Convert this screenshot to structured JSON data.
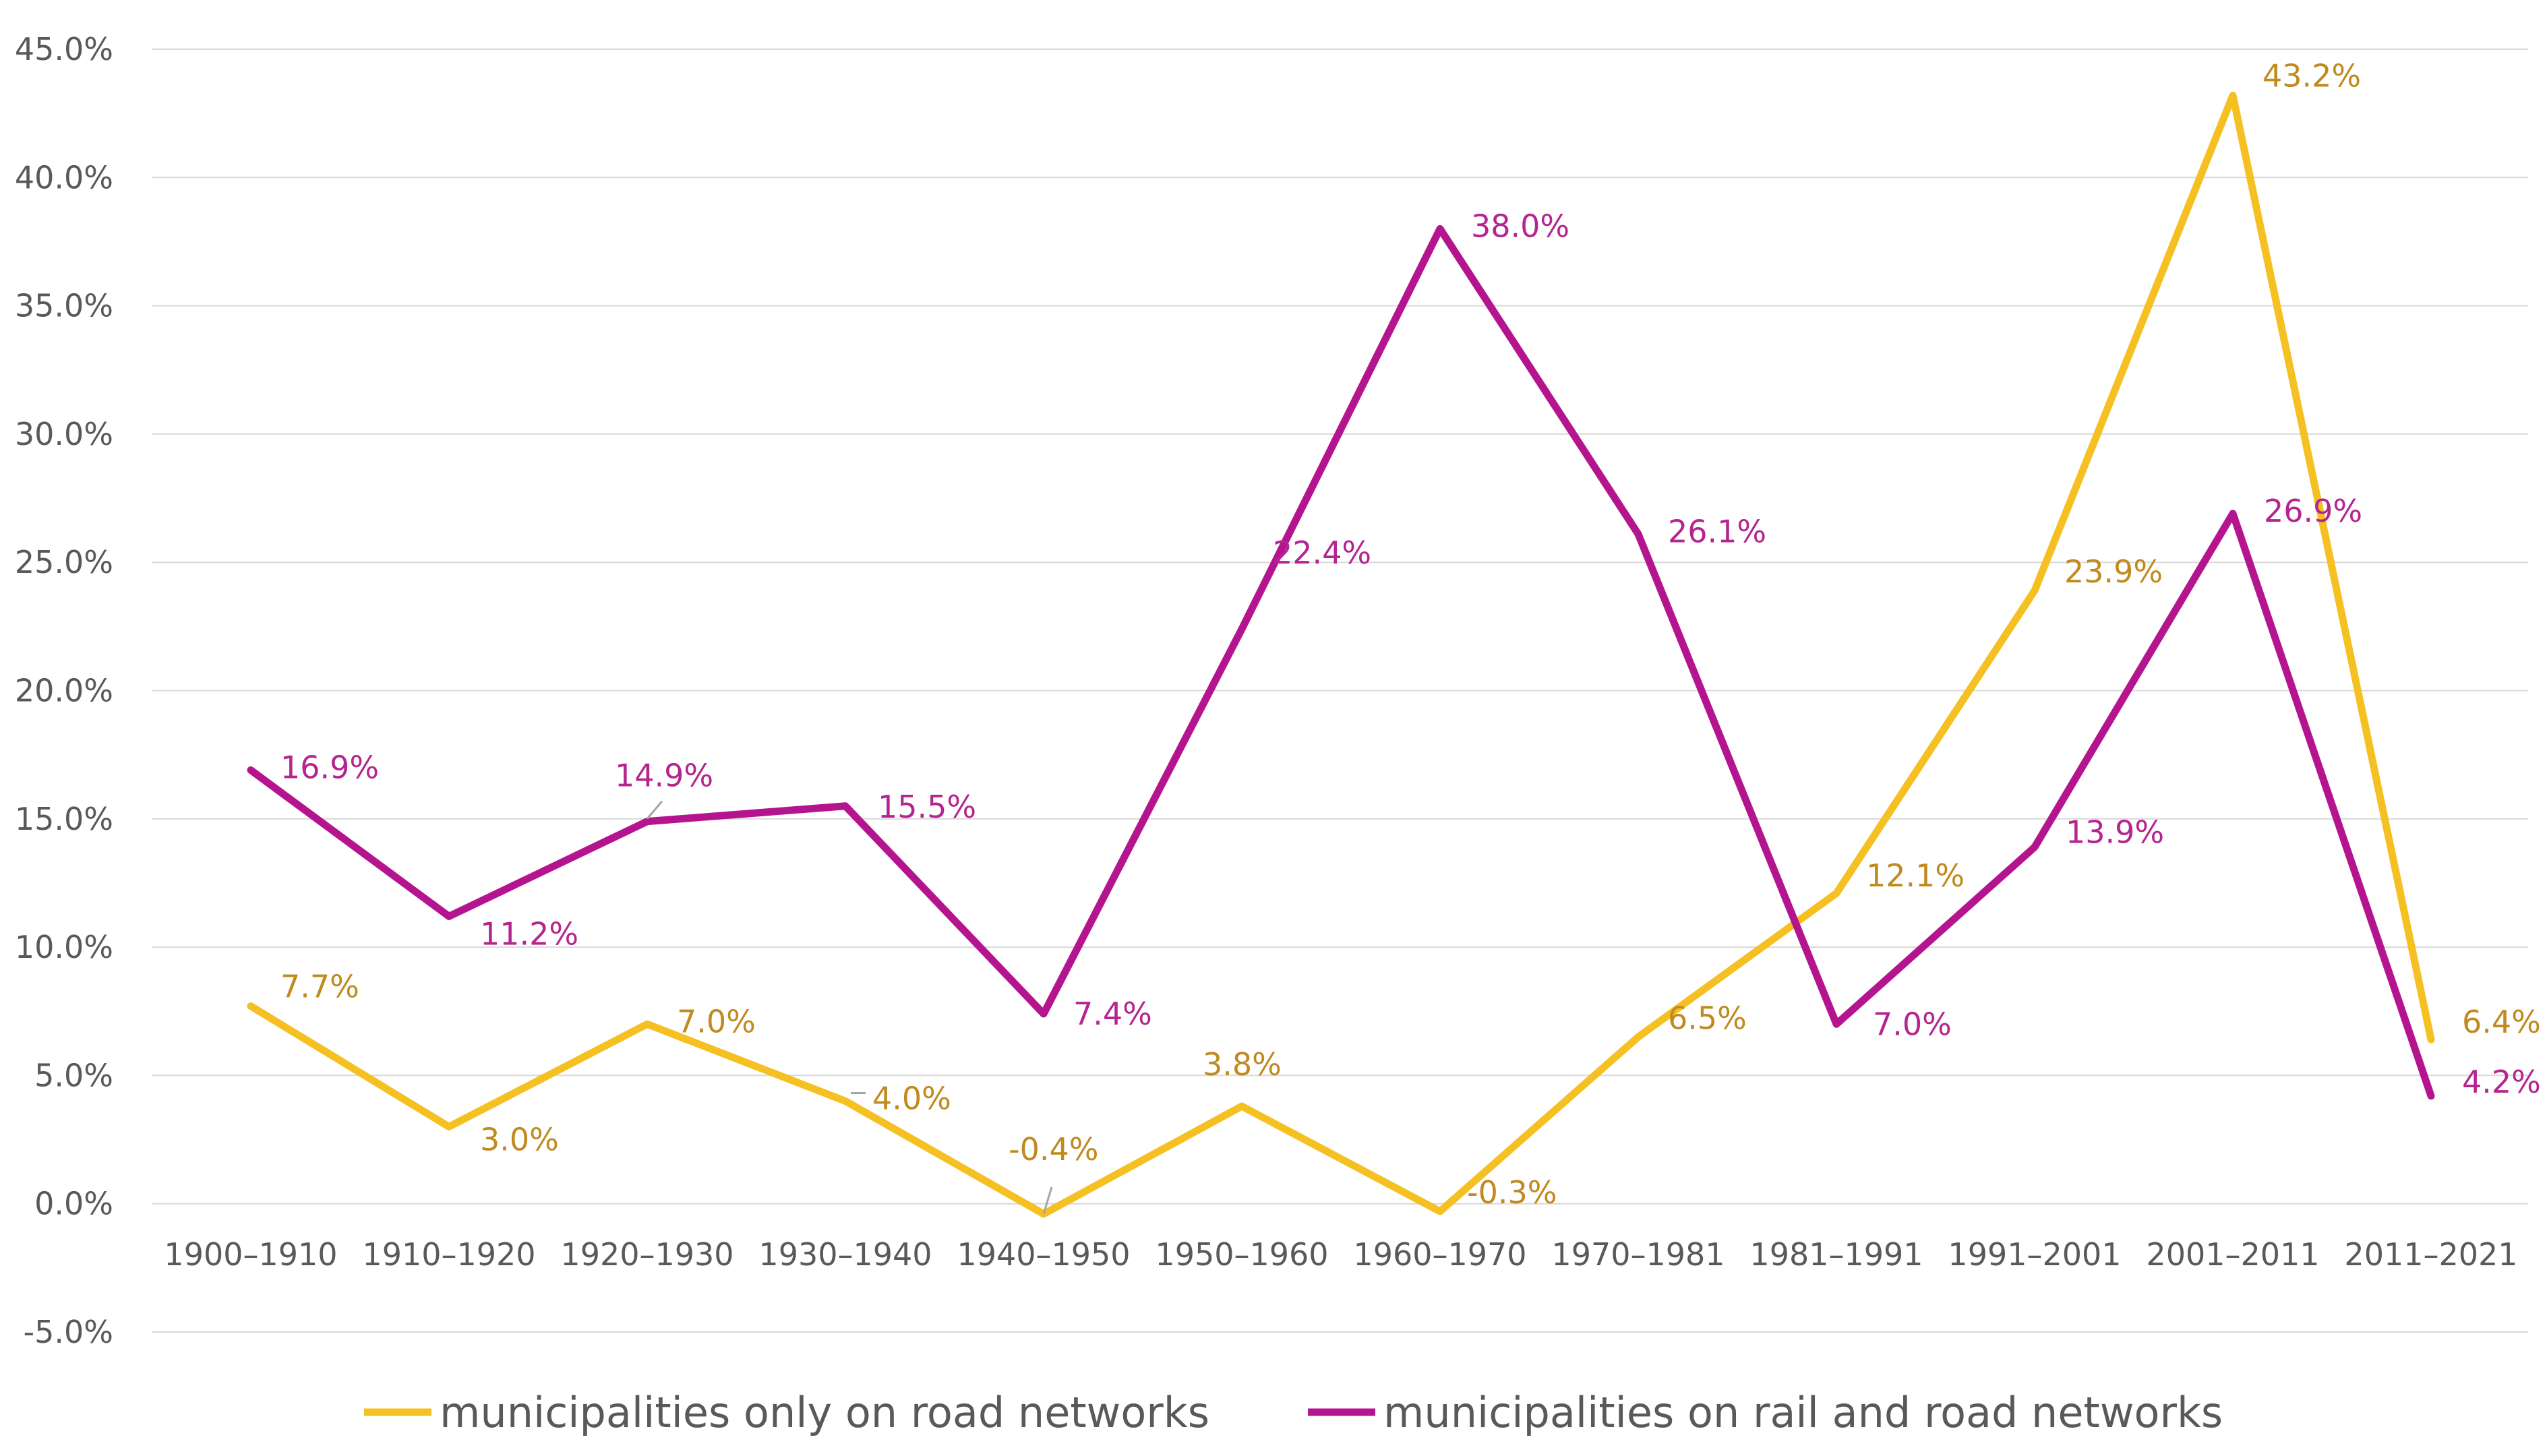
{
  "chart_data": {
    "type": "line",
    "categories": [
      "1900–1910",
      "1910–1920",
      "1920–1930",
      "1930–1940",
      "1940–1950",
      "1950–1960",
      "1960–1970",
      "1970–1981",
      "1981–1991",
      "1991–2001",
      "2001–2011",
      "2011–2021"
    ],
    "ylim": [
      -5,
      45
    ],
    "y_ticks": [
      "45.0%",
      "40.0%",
      "35.0%",
      "30.0%",
      "25.0%",
      "20.0%",
      "15.0%",
      "10.0%",
      "5.0%",
      "0.0%",
      "-5.0%"
    ],
    "y_tick_values": [
      45,
      40,
      35,
      30,
      25,
      20,
      15,
      10,
      5,
      0,
      -5
    ],
    "grid": true,
    "legend_position": "bottom",
    "series": [
      {
        "name": "municipalities only on road networks",
        "color": "#f5c021",
        "label_color": "#c08a1e",
        "values": [
          7.7,
          3.0,
          7.0,
          4.0,
          -0.4,
          3.8,
          -0.3,
          6.5,
          12.1,
          23.9,
          43.2,
          6.4
        ],
        "labels": [
          "7.7%",
          "3.0%",
          "7.0%",
          "4.0%",
          "-0.4%",
          "3.8%",
          "-0.3%",
          "6.5%",
          "12.1%",
          "23.9%",
          "43.2%",
          "6.4%"
        ]
      },
      {
        "name": "municipalities on rail and road networks",
        "color": "#b5148f",
        "label_color": "#b5248f",
        "values": [
          16.9,
          11.2,
          14.9,
          15.5,
          7.4,
          22.4,
          38.0,
          26.1,
          7.0,
          13.9,
          26.9,
          4.2
        ],
        "labels": [
          "16.9%",
          "11.2%",
          "14.9%",
          "15.5%",
          "7.4%",
          "22.4%",
          "38.0%",
          "26.1%",
          "7.0%",
          "13.9%",
          "26.9%",
          "4.2%"
        ]
      }
    ]
  }
}
